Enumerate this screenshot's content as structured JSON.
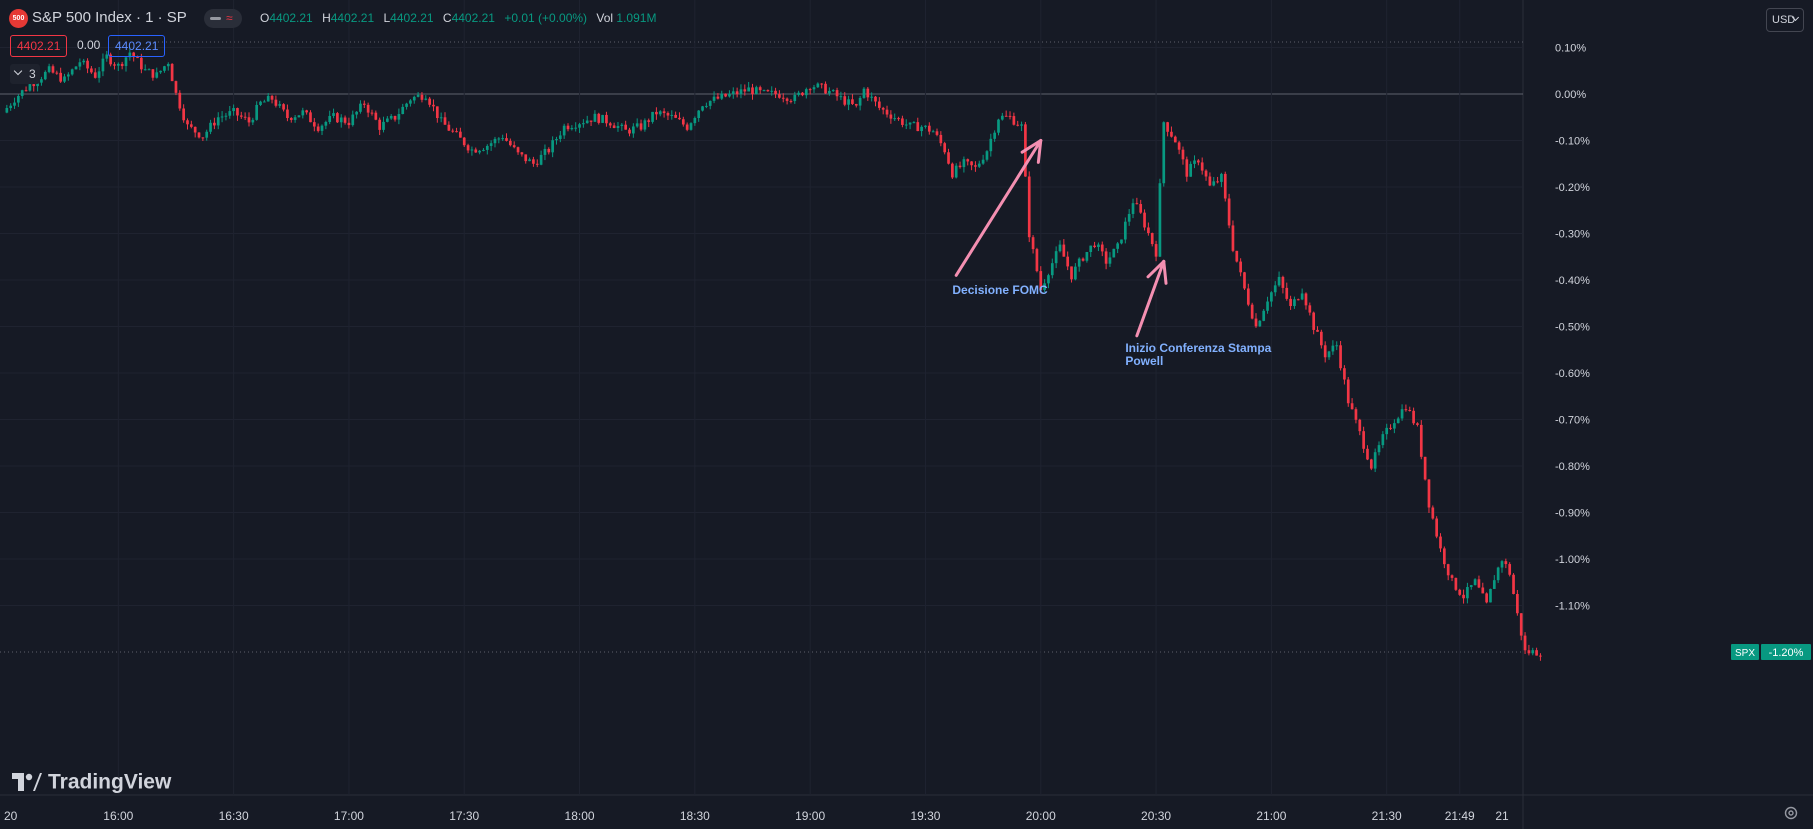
{
  "header": {
    "symbol_logo": "500",
    "symbol_title": "S&P 500 Index · 1 · SP",
    "ohlc": {
      "o_label": "O",
      "o": "4402.21",
      "h_label": "H",
      "h": "4402.21",
      "l_label": "L",
      "l": "4402.21",
      "c_label": "C",
      "c": "4402.21",
      "change": "+0.01 (+0.00%)",
      "vol_label": "Vol",
      "vol": "1.091M"
    },
    "sell_price": "4402.21",
    "spread": "0.00",
    "buy_price": "4402.21",
    "indicators_count": "3",
    "currency": "USD"
  },
  "brand": {
    "name": "TradingView"
  },
  "colors": {
    "background": "#161a25",
    "up": "#089981",
    "down": "#f23645",
    "annotation_arrow": "#f48fb1",
    "annotation_text": "#82b1ff"
  },
  "chart_data": {
    "type": "candlestick",
    "y_unit": "percent change",
    "ylim": [
      -1.22,
      0.12
    ],
    "y_ticks": [
      "0.10%",
      "0.00%",
      "-0.10%",
      "-0.20%",
      "-0.30%",
      "-0.40%",
      "-0.50%",
      "-0.60%",
      "-0.70%",
      "-0.80%",
      "-0.90%",
      "-1.00%",
      "-1.10%"
    ],
    "y_tick_values": [
      0.1,
      0.0,
      -0.1,
      -0.2,
      -0.3,
      -0.4,
      -0.5,
      -0.6,
      -0.7,
      -0.8,
      -0.9,
      -1.0,
      -1.1
    ],
    "x_ticks": [
      "20",
      "16:00",
      "16:30",
      "17:00",
      "17:30",
      "18:00",
      "18:30",
      "19:00",
      "19:30",
      "20:00",
      "20:30",
      "21:00",
      "21:30",
      "21:49",
      "21"
    ],
    "x_tick_minutes": [
      930,
      960,
      990,
      1020,
      1050,
      1080,
      1110,
      1140,
      1170,
      1200,
      1230,
      1260,
      1290,
      1309,
      1320
    ],
    "grid": true,
    "last_value_label": "SPX",
    "last_value": "-1.20%",
    "last_value_num": -1.2,
    "path_points": [
      [
        930,
        -0.04
      ],
      [
        933,
        -0.01
      ],
      [
        937,
        0.02
      ],
      [
        942,
        0.05
      ],
      [
        946,
        0.03
      ],
      [
        950,
        0.07
      ],
      [
        954,
        0.04
      ],
      [
        957,
        0.08
      ],
      [
        960,
        0.06
      ],
      [
        963,
        0.09
      ],
      [
        967,
        0.05
      ],
      [
        970,
        0.04
      ],
      [
        973,
        0.07
      ],
      [
        975,
        0.0
      ],
      [
        978,
        -0.07
      ],
      [
        982,
        -0.09
      ],
      [
        986,
        -0.05
      ],
      [
        990,
        -0.04
      ],
      [
        994,
        -0.06
      ],
      [
        997,
        -0.02
      ],
      [
        1000,
        -0.01
      ],
      [
        1004,
        -0.05
      ],
      [
        1008,
        -0.04
      ],
      [
        1012,
        -0.07
      ],
      [
        1016,
        -0.05
      ],
      [
        1020,
        -0.06
      ],
      [
        1024,
        -0.02
      ],
      [
        1028,
        -0.07
      ],
      [
        1032,
        -0.05
      ],
      [
        1036,
        -0.01
      ],
      [
        1040,
        0.0
      ],
      [
        1044,
        -0.06
      ],
      [
        1048,
        -0.09
      ],
      [
        1052,
        -0.12
      ],
      [
        1056,
        -0.11
      ],
      [
        1060,
        -0.09
      ],
      [
        1064,
        -0.13
      ],
      [
        1068,
        -0.15
      ],
      [
        1072,
        -0.12
      ],
      [
        1076,
        -0.07
      ],
      [
        1080,
        -0.06
      ],
      [
        1084,
        -0.05
      ],
      [
        1088,
        -0.06
      ],
      [
        1092,
        -0.08
      ],
      [
        1096,
        -0.07
      ],
      [
        1100,
        -0.04
      ],
      [
        1104,
        -0.05
      ],
      [
        1108,
        -0.07
      ],
      [
        1112,
        -0.02
      ],
      [
        1116,
        -0.01
      ],
      [
        1120,
        0.0
      ],
      [
        1124,
        0.01
      ],
      [
        1128,
        0.0
      ],
      [
        1132,
        0.0
      ],
      [
        1136,
        -0.01
      ],
      [
        1140,
        0.02
      ],
      [
        1144,
        0.01
      ],
      [
        1148,
        -0.01
      ],
      [
        1152,
        -0.03
      ],
      [
        1154,
        0.01
      ],
      [
        1158,
        -0.03
      ],
      [
        1162,
        -0.05
      ],
      [
        1166,
        -0.07
      ],
      [
        1169,
        -0.07
      ],
      [
        1172,
        -0.08
      ],
      [
        1175,
        -0.12
      ],
      [
        1177,
        -0.17
      ],
      [
        1180,
        -0.15
      ],
      [
        1183,
        -0.16
      ],
      [
        1186,
        -0.12
      ],
      [
        1189,
        -0.05
      ],
      [
        1192,
        -0.05
      ],
      [
        1195,
        -0.07
      ],
      [
        1197,
        -0.3
      ],
      [
        1200,
        -0.42
      ],
      [
        1202,
        -0.38
      ],
      [
        1205,
        -0.33
      ],
      [
        1208,
        -0.39
      ],
      [
        1211,
        -0.35
      ],
      [
        1214,
        -0.32
      ],
      [
        1217,
        -0.36
      ],
      [
        1220,
        -0.33
      ],
      [
        1222,
        -0.28
      ],
      [
        1224,
        -0.23
      ],
      [
        1226,
        -0.26
      ],
      [
        1228,
        -0.3
      ],
      [
        1230,
        -0.34
      ],
      [
        1232,
        -0.06
      ],
      [
        1235,
        -0.1
      ],
      [
        1238,
        -0.17
      ],
      [
        1241,
        -0.14
      ],
      [
        1244,
        -0.2
      ],
      [
        1247,
        -0.18
      ],
      [
        1250,
        -0.33
      ],
      [
        1253,
        -0.42
      ],
      [
        1256,
        -0.5
      ],
      [
        1259,
        -0.44
      ],
      [
        1262,
        -0.4
      ],
      [
        1265,
        -0.46
      ],
      [
        1268,
        -0.42
      ],
      [
        1271,
        -0.5
      ],
      [
        1274,
        -0.56
      ],
      [
        1277,
        -0.54
      ],
      [
        1280,
        -0.66
      ],
      [
        1283,
        -0.73
      ],
      [
        1286,
        -0.8
      ],
      [
        1289,
        -0.74
      ],
      [
        1292,
        -0.7
      ],
      [
        1295,
        -0.67
      ],
      [
        1298,
        -0.72
      ],
      [
        1301,
        -0.88
      ],
      [
        1304,
        -0.98
      ],
      [
        1307,
        -1.05
      ],
      [
        1310,
        -1.08
      ],
      [
        1313,
        -1.05
      ],
      [
        1316,
        -1.1
      ],
      [
        1318,
        -1.04
      ],
      [
        1320,
        -1.0
      ],
      [
        1322,
        -1.03
      ],
      [
        1324,
        -1.12
      ],
      [
        1326,
        -1.2
      ],
      [
        1328,
        -1.2
      ],
      [
        1330,
        -1.2
      ]
    ],
    "annotations": [
      {
        "text_lines": [
          "Decisione FOMC"
        ],
        "arrow_to": [
          1200,
          -0.1
        ],
        "arrow_from": [
          1178,
          -0.39
        ],
        "text_at": [
          1177,
          -0.43
        ]
      },
      {
        "text_lines": [
          "Inizio Conferenza Stampa",
          "Powell"
        ],
        "arrow_to": [
          1232,
          -0.36
        ],
        "arrow_from": [
          1225,
          -0.52
        ],
        "text_at": [
          1222,
          -0.555
        ]
      }
    ]
  }
}
